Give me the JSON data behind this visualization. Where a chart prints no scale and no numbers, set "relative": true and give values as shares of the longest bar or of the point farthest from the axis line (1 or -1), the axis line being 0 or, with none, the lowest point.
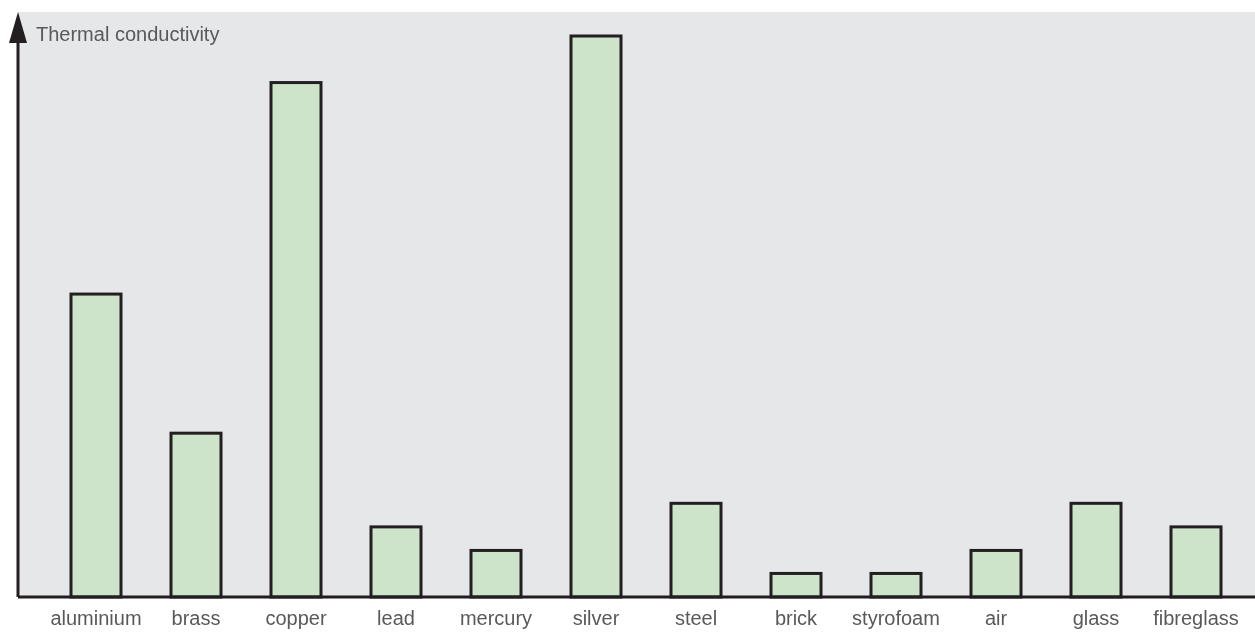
{
  "chart_data": {
    "type": "bar",
    "ylabel": "Thermal conductivity",
    "relative": true,
    "color": "#cde4cb",
    "categories": [
      "aluminium",
      "brass",
      "copper",
      "lead",
      "mercury",
      "silver",
      "steel",
      "brick",
      "styrofoam",
      "air",
      "glass",
      "fibreglass"
    ],
    "values": [
      0.54,
      0.292,
      0.917,
      0.125,
      0.083,
      1,
      0.167,
      0.042,
      0.042,
      0.083,
      0.167,
      0.125
    ]
  }
}
